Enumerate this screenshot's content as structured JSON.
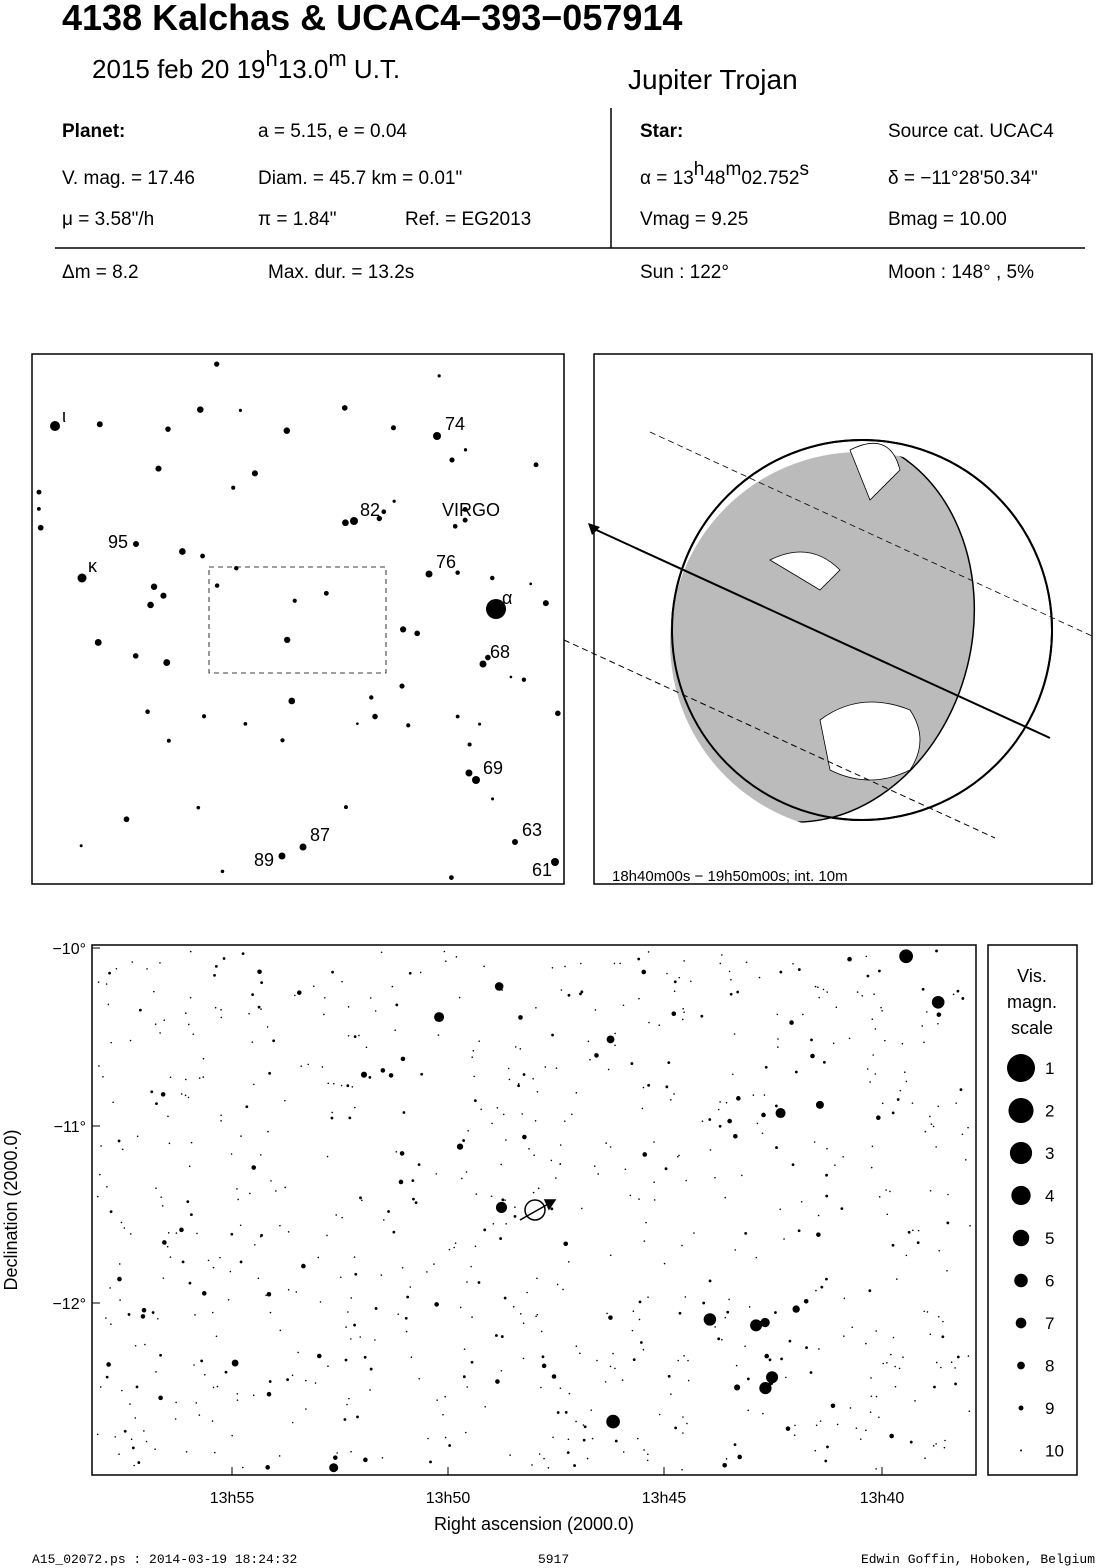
{
  "header": {
    "title": "4138 Kalchas  &  UCAC4−393−057914",
    "date": [
      "2015 feb 20  19",
      "h",
      "13.0",
      "m",
      " U.T."
    ],
    "object_class": "Jupiter Trojan"
  },
  "details": {
    "planet_label": "Planet:",
    "orbit": "a = 5.15, e = 0.04",
    "vmag": "V. mag. = 17.46",
    "diameter": "Diam. = 45.7 km = 0.01\"",
    "motion": "μ =  3.58\"/h",
    "parallax": "π =  1.84\"",
    "reference": "Ref. = EG2013",
    "star_label": "Star:",
    "source": "Source cat.  UCAC4",
    "ra": [
      "α = 13",
      "h",
      "48",
      "m",
      "02.752",
      "s"
    ],
    "dec": "δ = −11°28'50.34\"",
    "star_vmag": "Vmag =  9.25",
    "star_bmag": "Bmag = 10.00",
    "delta_mag": "Δm = 8.2",
    "max_duration": "Max. dur. = 13.2s",
    "sun": "Sun : 122°",
    "moon": "Moon : 148° ,  5%"
  },
  "finder": {
    "labels": [
      "ι",
      "74",
      "82",
      "VIRGO",
      "95",
      "κ",
      "76",
      "α",
      "68",
      "69",
      "87",
      "63",
      "89",
      "61"
    ]
  },
  "globe": {
    "caption": "18h40m00s − 19h50m00s; int. 10m"
  },
  "starfield": {
    "yticks": [
      "−10°",
      "−11°",
      "−12°"
    ],
    "xticks": [
      "13h55",
      "13h50",
      "13h45",
      "13h40"
    ],
    "xlabel": "Right ascension (2000.0)",
    "ylabel": "Declination (2000.0)",
    "legend_title": [
      "Vis.",
      "magn.",
      "scale"
    ],
    "legend": [
      "1",
      "2",
      "3",
      "4",
      "5",
      "6",
      "7",
      "8",
      "9",
      "10"
    ]
  },
  "footer": {
    "file": "A15_02072.ps : 2014-03-19 18:24:32",
    "number": "5917",
    "author": "Edwin Goffin, Hoboken, Belgium"
  }
}
